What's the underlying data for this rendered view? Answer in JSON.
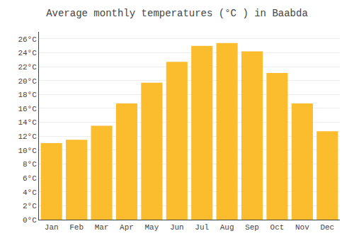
{
  "chart_data": {
    "type": "bar",
    "title": "Average monthly temperatures (°C ) in Baabda",
    "categories": [
      "Jan",
      "Feb",
      "Mar",
      "Apr",
      "May",
      "Jun",
      "Jul",
      "Aug",
      "Sep",
      "Oct",
      "Nov",
      "Dec"
    ],
    "values": [
      11.0,
      11.5,
      13.5,
      16.7,
      19.7,
      22.7,
      25.0,
      25.4,
      24.2,
      21.1,
      16.7,
      12.7
    ],
    "color": "#FBBC2E",
    "ylim": [
      0,
      27
    ],
    "yticks": [
      {
        "value": 0,
        "label": "0°C"
      },
      {
        "value": 2,
        "label": "2°C"
      },
      {
        "value": 4,
        "label": "4°C"
      },
      {
        "value": 6,
        "label": "6°C"
      },
      {
        "value": 8,
        "label": "8°C"
      },
      {
        "value": 10,
        "label": "10°C"
      },
      {
        "value": 12,
        "label": "12°C"
      },
      {
        "value": 14,
        "label": "14°C"
      },
      {
        "value": 16,
        "label": "16°C"
      },
      {
        "value": 18,
        "label": "18°C"
      },
      {
        "value": 20,
        "label": "20°C"
      },
      {
        "value": 22,
        "label": "22°C"
      },
      {
        "value": 24,
        "label": "24°C"
      },
      {
        "value": 26,
        "label": "26°C"
      }
    ],
    "grid": true
  }
}
